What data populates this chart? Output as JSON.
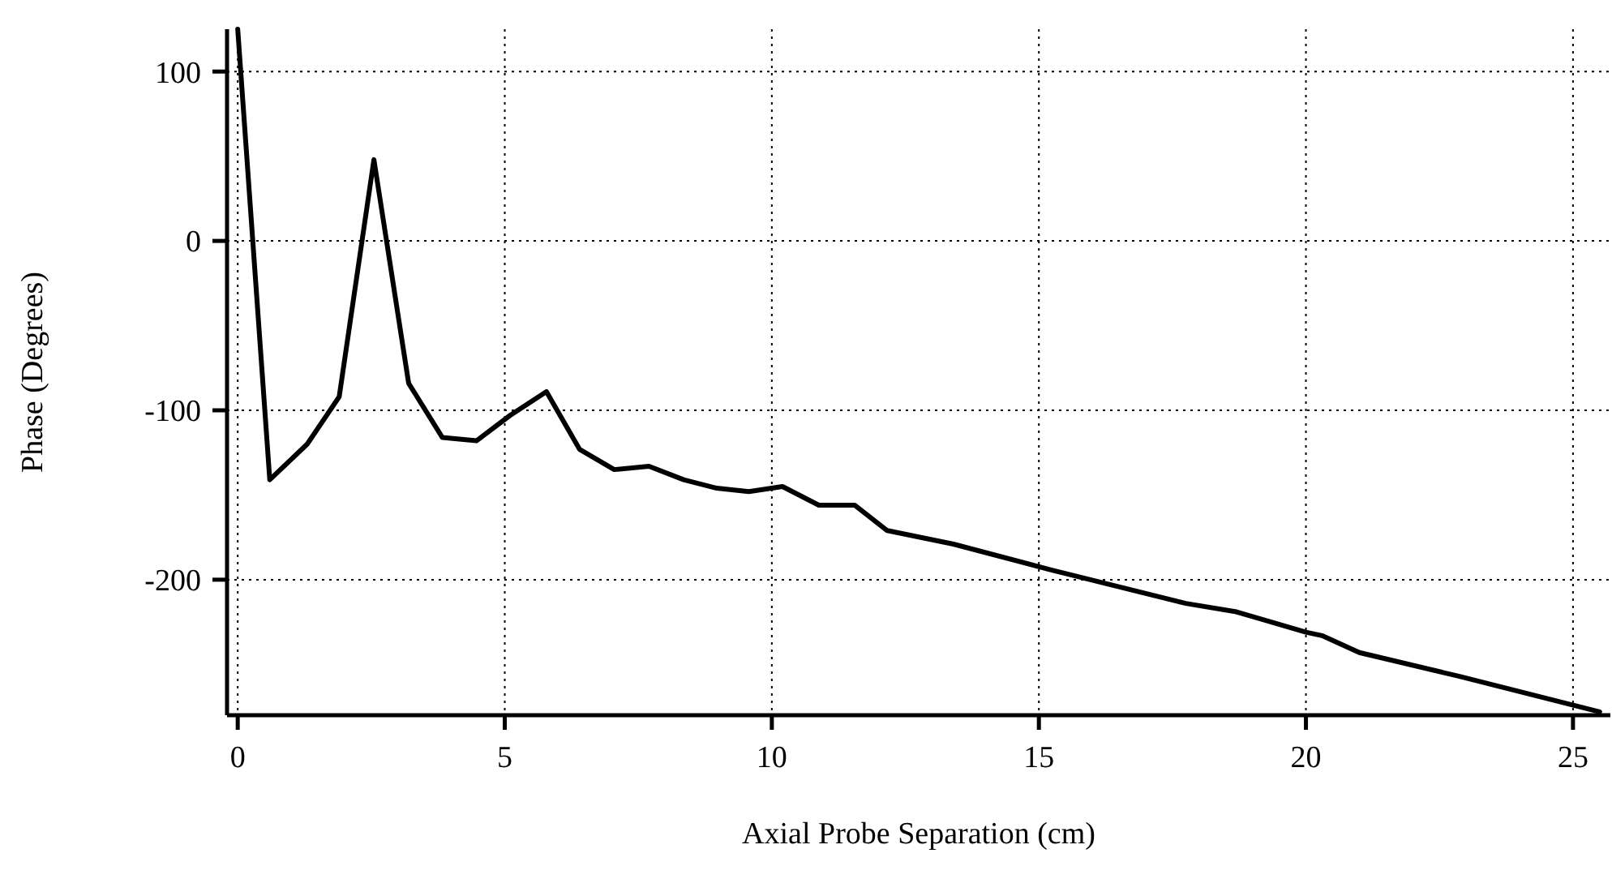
{
  "chart_data": {
    "type": "line",
    "xlabel": "Axial Probe Separation (cm)",
    "ylabel": "Phase (Degrees)",
    "xlim": [
      -0.2,
      25.7
    ],
    "ylim": [
      -280,
      125
    ],
    "xticks": [
      0,
      5,
      10,
      15,
      20,
      25
    ],
    "yticks": [
      -200,
      -100,
      0,
      100
    ],
    "grid": true,
    "marker": "none",
    "line_style": "solid",
    "series": [
      {
        "color": "#000000",
        "x": [
          0,
          0.6,
          1.3,
          1.9,
          2.55,
          3.2,
          3.83,
          4.47,
          5.1,
          5.78,
          6.4,
          7.05,
          7.7,
          8.35,
          8.97,
          9.57,
          10.2,
          10.88,
          11.55,
          12.16,
          13.4,
          15.2,
          17.75,
          18.7,
          20.0,
          20.3,
          21.0,
          22.86,
          25.5
        ],
        "values": [
          125,
          -141,
          -120,
          -92,
          48,
          -84,
          -116,
          -118,
          -103,
          -89,
          -123,
          -135,
          -133,
          -141,
          -146,
          -148,
          -145,
          -156,
          -156,
          -171,
          -179,
          -194,
          -214,
          -219,
          -231,
          -233,
          -243,
          -257,
          -278
        ]
      }
    ]
  }
}
